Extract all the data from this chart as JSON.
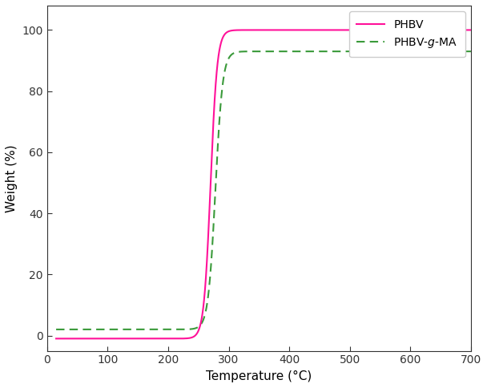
{
  "title": "",
  "xlabel": "Temperature (°C)",
  "ylabel": "Weight (%)",
  "xlim": [
    0,
    700
  ],
  "ylim": [
    -5,
    108
  ],
  "yticks": [
    0,
    20,
    40,
    60,
    80,
    100
  ],
  "xticks": [
    0,
    100,
    200,
    300,
    400,
    500,
    600,
    700
  ],
  "phbv_color": "#FF1199",
  "phbvgma_color": "#3A9A3A",
  "legend_labels": [
    "PHBV",
    "PHBV-$g$-MA"
  ],
  "figsize": [
    6.08,
    4.84
  ],
  "dpi": 100,
  "background_color": "#ffffff"
}
